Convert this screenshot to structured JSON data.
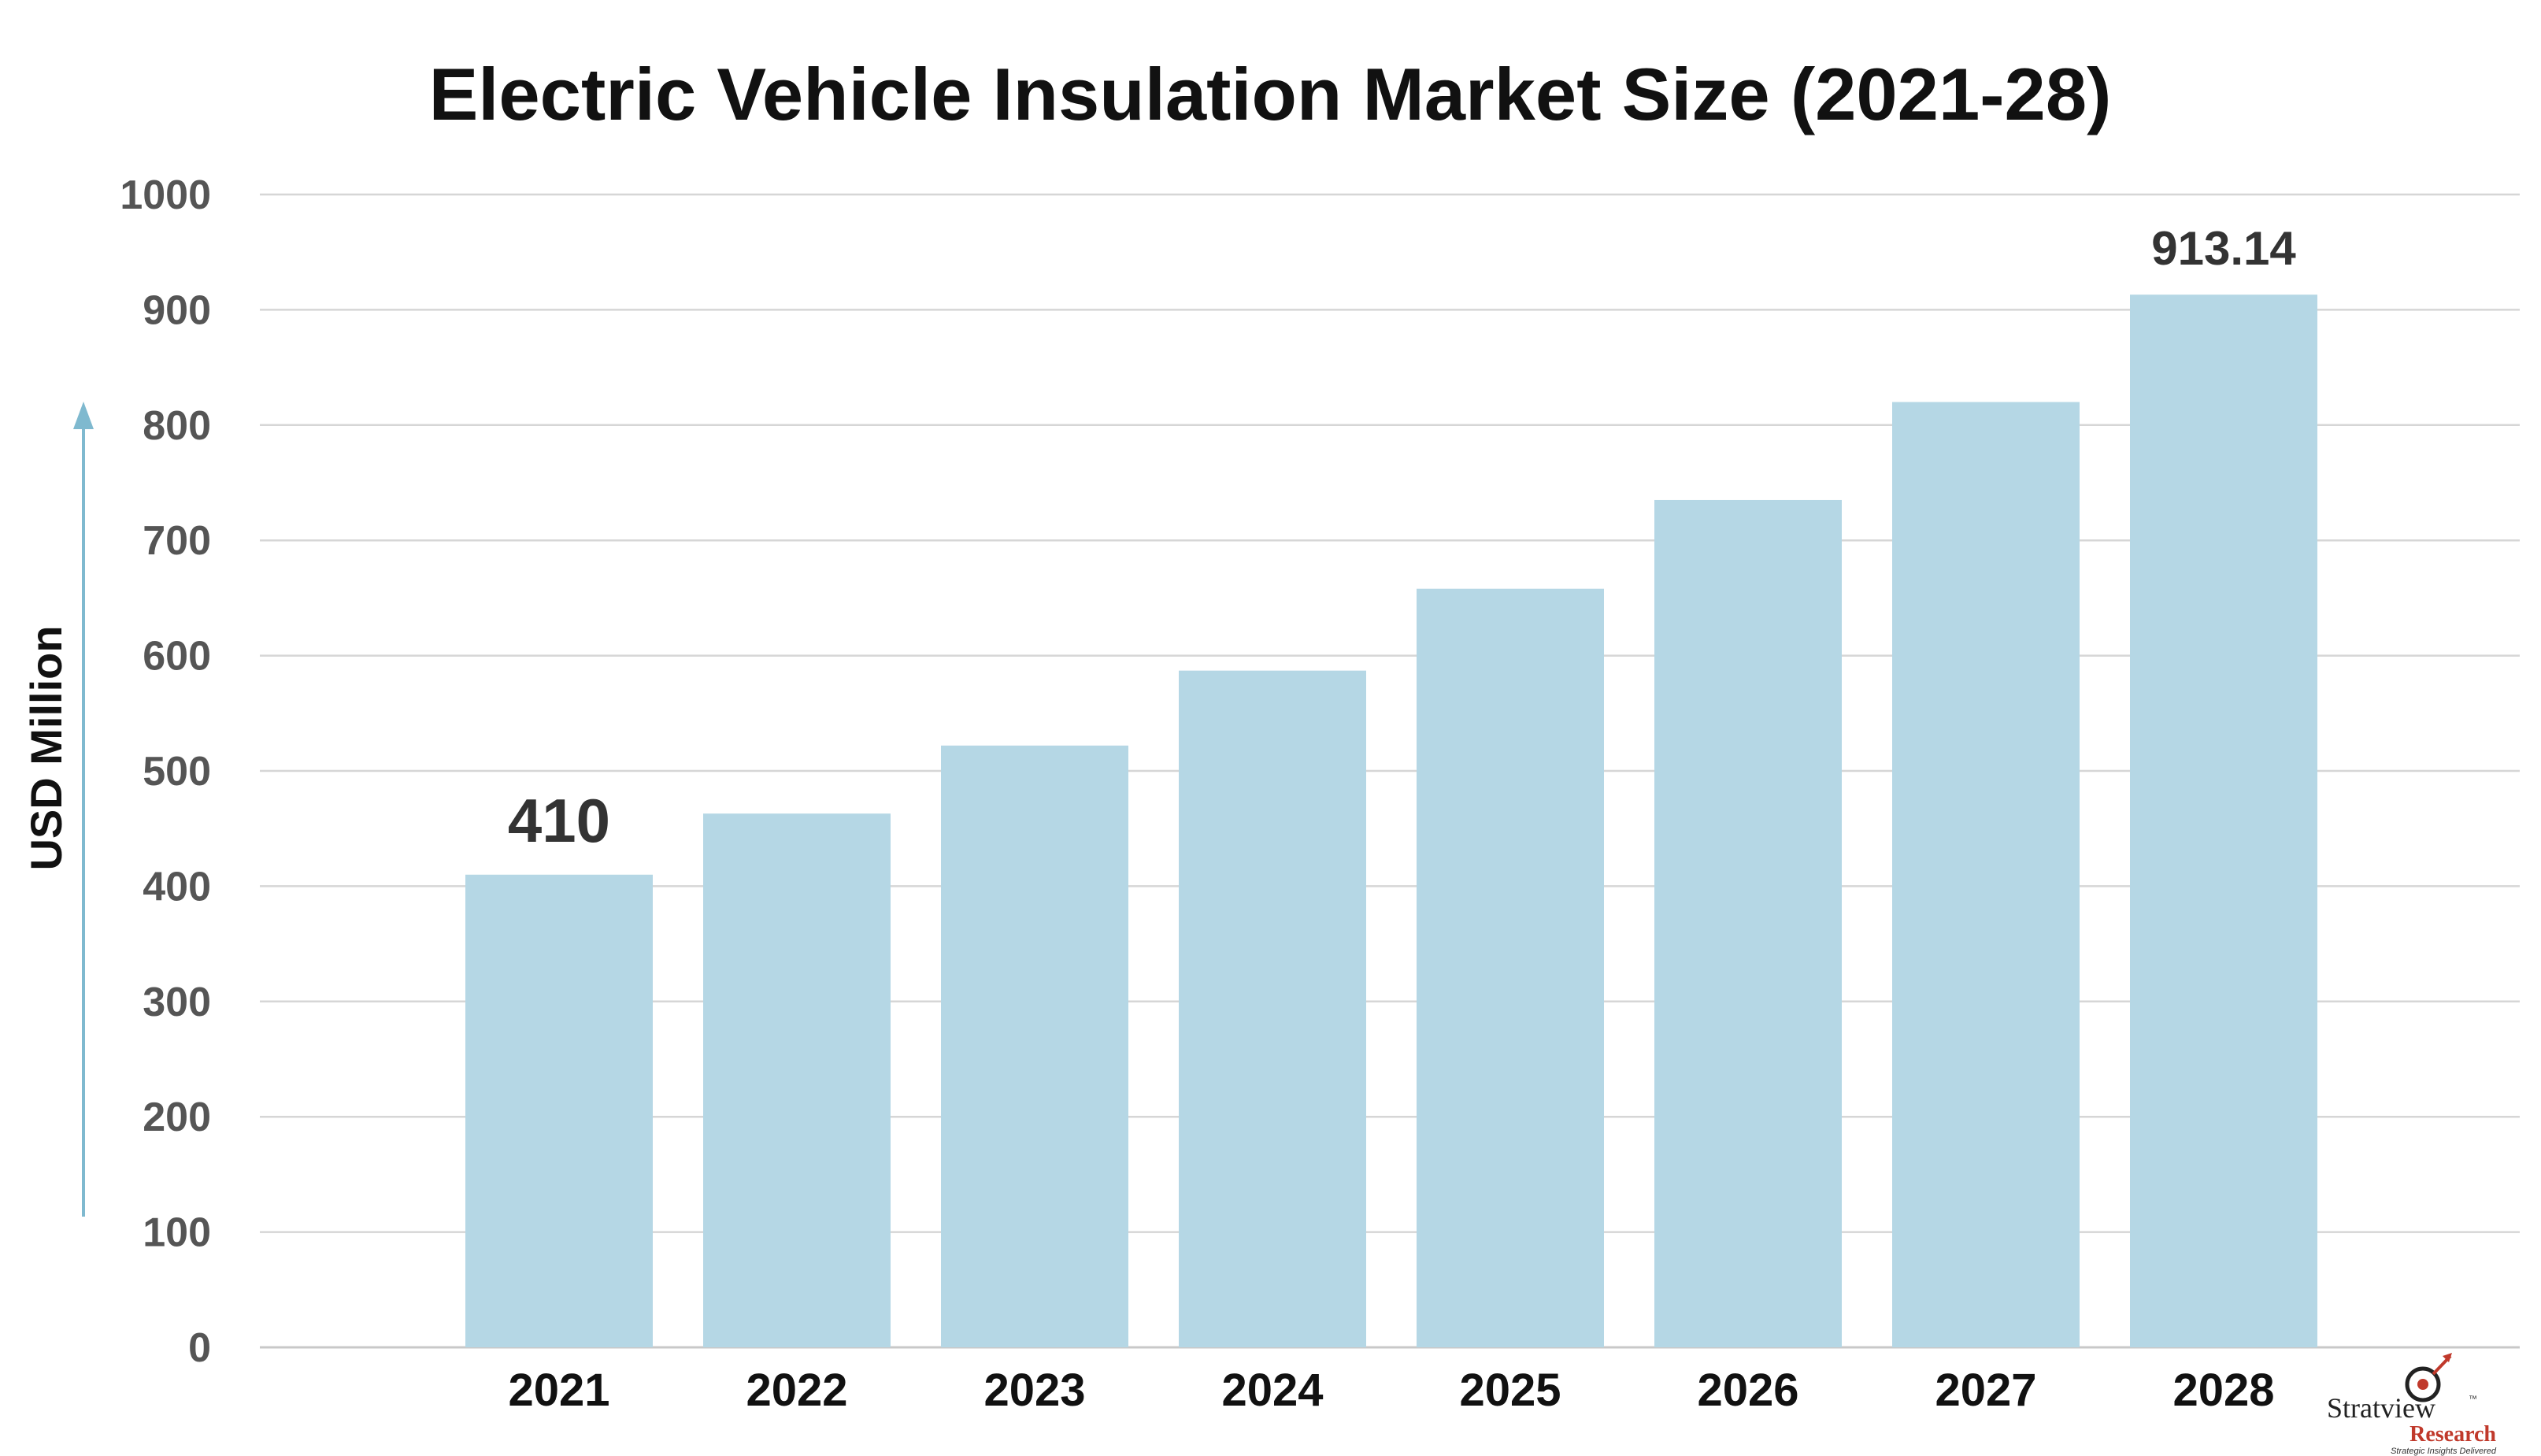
{
  "chart_data": {
    "type": "bar",
    "title": "Electric Vehicle Insulation Market Size (2021-28)",
    "xlabel": "",
    "ylabel": "USD Million",
    "ylim": [
      0,
      1000
    ],
    "yticks": [
      0,
      100,
      200,
      300,
      400,
      500,
      600,
      700,
      800,
      900,
      1000
    ],
    "categories": [
      "2021",
      "2022",
      "2023",
      "2024",
      "2025",
      "2026",
      "2027",
      "2028"
    ],
    "values": [
      410,
      463,
      522,
      587,
      658,
      735,
      820,
      913.14
    ],
    "data_labels": [
      {
        "category": "2021",
        "text": "410"
      },
      {
        "category": "2028",
        "text": "913.14"
      }
    ],
    "grid": true,
    "bar_color": "#b5d7e5",
    "arrow_color": "#7fb9cf"
  },
  "logo": {
    "name": "Stratview",
    "trademark": "™",
    "subtitle": "Research",
    "tagline": "Strategic Insights Delivered"
  }
}
